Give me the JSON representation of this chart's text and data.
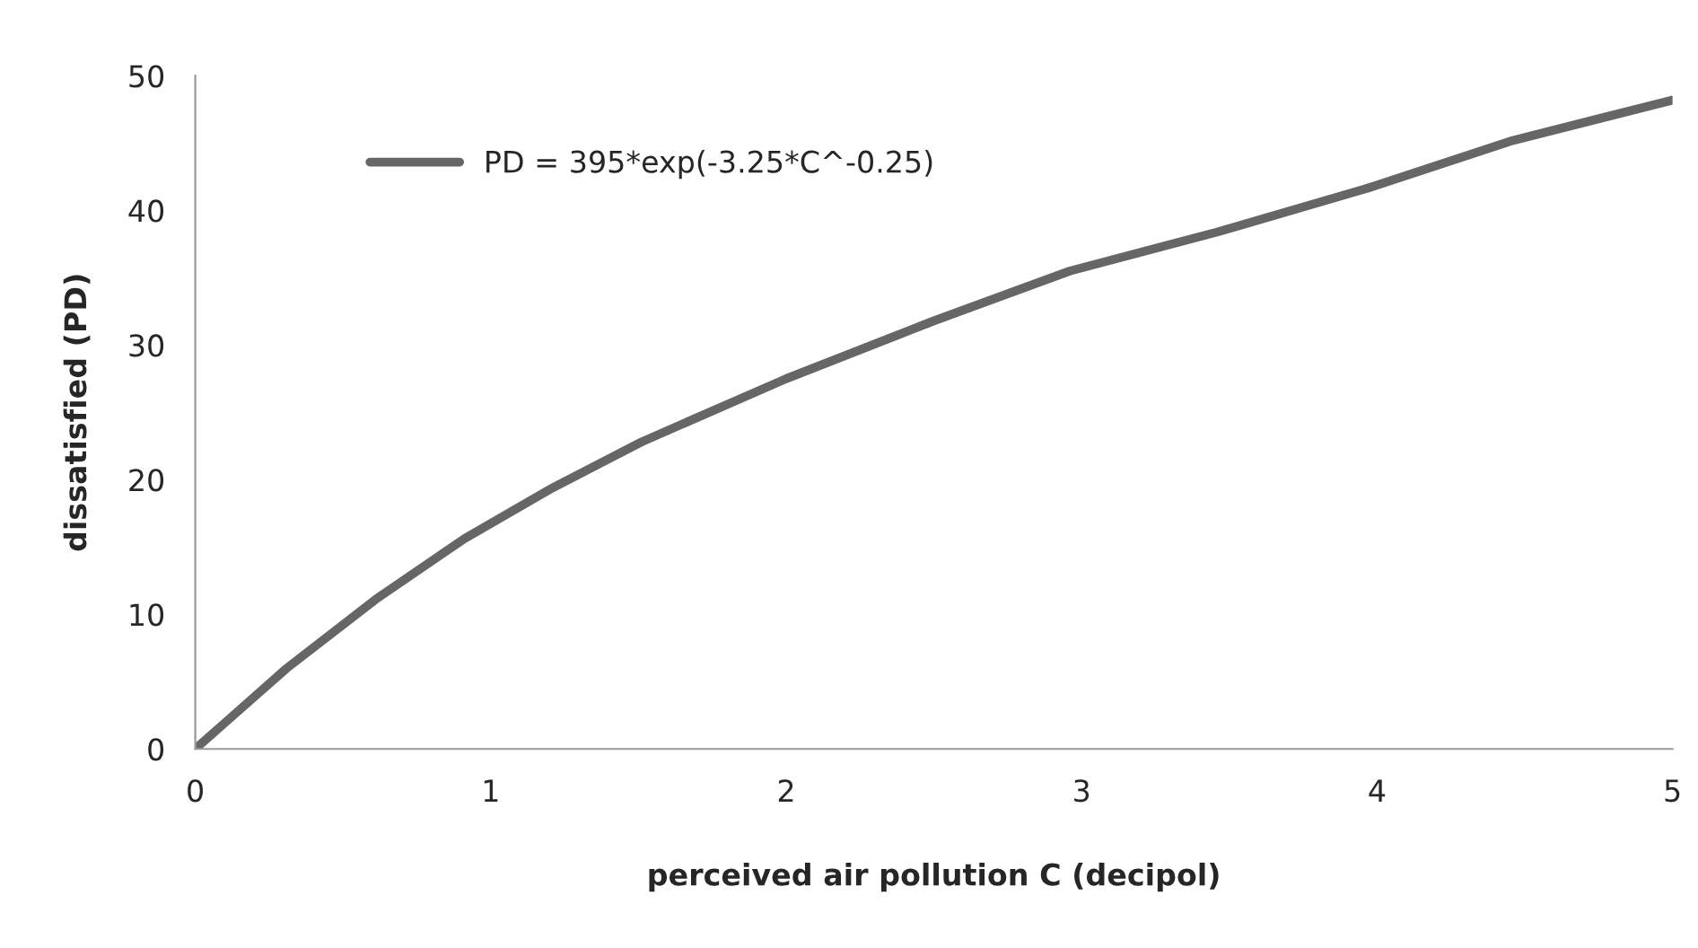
{
  "chart_data": {
    "type": "line",
    "xlabel": "perceived air pollution C (decipol)",
    "ylabel": "dissatisfied (PD)",
    "xlim": [
      0,
      5
    ],
    "ylim": [
      0,
      50
    ],
    "xticks": [
      0,
      1,
      2,
      3,
      4,
      5
    ],
    "yticks": [
      0,
      10,
      20,
      30,
      40,
      50
    ],
    "grid": false,
    "legend": "top left",
    "marker": "none",
    "line_style": "solid",
    "series": [
      {
        "name": "PD = 395*exp(-3.25*C^-0.25)",
        "color": "#666666",
        "x": [
          0,
          0.31,
          0.61,
          0.91,
          1.21,
          1.51,
          2.0,
          2.5,
          2.96,
          3.46,
          3.96,
          4.46,
          5.0
        ],
        "values": [
          0,
          6.0,
          11.1,
          15.6,
          19.4,
          22.8,
          27.5,
          31.8,
          35.5,
          38.4,
          41.6,
          45.2,
          48.2
        ]
      }
    ]
  }
}
